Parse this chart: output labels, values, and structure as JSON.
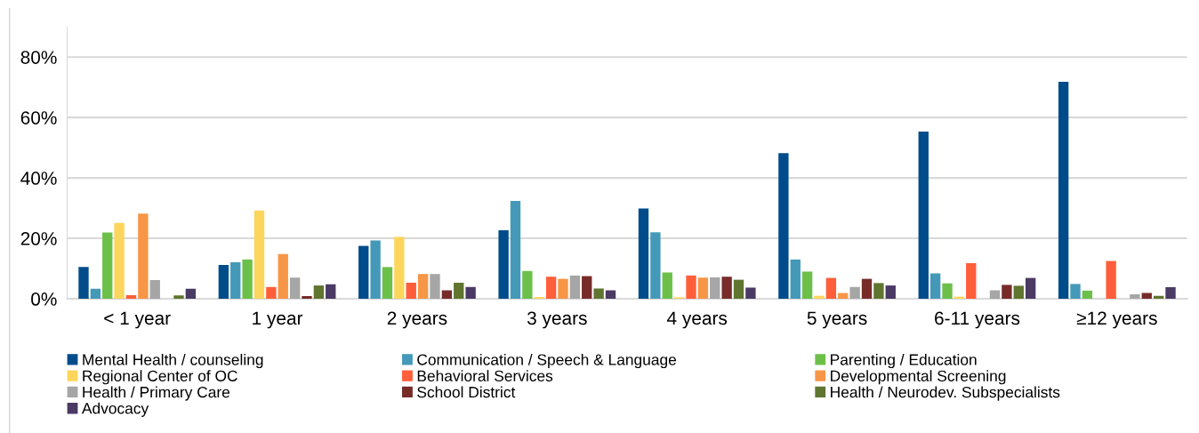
{
  "chart_data": {
    "type": "bar",
    "categories": [
      "< 1 year",
      "1 year",
      "2 years",
      "3 years",
      "4 years",
      "5 years",
      "6-11 years",
      "≥12 years"
    ],
    "series": [
      {
        "name": "Mental Health / counseling",
        "color": "#004c8a",
        "values": [
          10.5,
          11.2,
          17.5,
          22.7,
          29.9,
          48.2,
          55.3,
          71.8
        ]
      },
      {
        "name": "Communication / Speech & Language",
        "color": "#4499b8",
        "values": [
          3.3,
          12.1,
          19.3,
          32.4,
          22.0,
          13.0,
          8.4,
          4.9
        ]
      },
      {
        "name": "Parenting / Education",
        "color": "#6cc04a",
        "values": [
          21.9,
          13.0,
          10.5,
          9.2,
          8.7,
          9.0,
          5.1,
          2.7
        ]
      },
      {
        "name": "Regional Center of OC",
        "color": "#fcd55c",
        "values": [
          25.1,
          29.2,
          20.5,
          0.6,
          0.5,
          1.0,
          0.7,
          0
        ]
      },
      {
        "name": "Behavioral Services",
        "color": "#ff5e3a",
        "values": [
          1.2,
          3.9,
          5.3,
          7.3,
          7.7,
          6.9,
          11.8,
          12.5
        ]
      },
      {
        "name": "Developmental Screening",
        "color": "#f79646",
        "values": [
          28.2,
          14.8,
          8.2,
          6.6,
          7.0,
          1.9,
          0,
          0
        ]
      },
      {
        "name": "Health / Primary Care",
        "color": "#a6a6a6",
        "values": [
          6.2,
          7.0,
          8.2,
          7.7,
          7.1,
          3.9,
          2.8,
          1.5
        ]
      },
      {
        "name": "School District",
        "color": "#772c2a",
        "values": [
          0,
          0.9,
          2.8,
          7.5,
          7.3,
          6.6,
          4.6,
          1.9
        ]
      },
      {
        "name": "Health / Neurodev. Subspecialists",
        "color": "#5f7530",
        "values": [
          1.1,
          4.4,
          5.3,
          3.4,
          6.3,
          5.2,
          4.3,
          1.0
        ]
      },
      {
        "name": "Advocacy",
        "color": "#4b3a64",
        "values": [
          3.3,
          4.8,
          3.9,
          2.8,
          3.7,
          4.4,
          6.9,
          3.8
        ]
      }
    ],
    "ylim": [
      0,
      90
    ],
    "yticks": [
      {
        "value": 0,
        "label": "0%"
      },
      {
        "value": 20,
        "label": "20%"
      },
      {
        "value": 40,
        "label": "40%"
      },
      {
        "value": 60,
        "label": "60%"
      },
      {
        "value": 80,
        "label": "80%"
      }
    ],
    "grid": "y",
    "legend": "bottom"
  }
}
